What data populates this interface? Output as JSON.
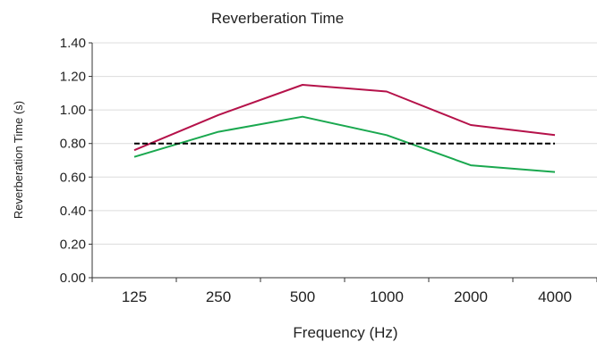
{
  "chart_data": {
    "type": "line",
    "title": "Reverberation Time",
    "xlabel": "Frequency (Hz)",
    "ylabel": "Reverberation Time (s)",
    "categories": [
      "125",
      "250",
      "500",
      "1000",
      "2000",
      "4000"
    ],
    "yticks": [
      "0.00",
      "0.20",
      "0.40",
      "0.60",
      "0.80",
      "1.00",
      "1.20",
      "1.40"
    ],
    "ylim": [
      0,
      1.4
    ],
    "grid": true,
    "legend": "none",
    "series": [
      {
        "values": [
          0.76,
          0.97,
          1.15,
          1.11,
          0.91,
          0.85
        ],
        "color": "#b5124a",
        "dash": "solid"
      },
      {
        "values": [
          0.72,
          0.87,
          0.96,
          0.85,
          0.67,
          0.63
        ],
        "color": "#1aa84f",
        "dash": "solid"
      },
      {
        "values": [
          0.8,
          0.8,
          0.8,
          0.8,
          0.8,
          0.8
        ],
        "color": "#000000",
        "dash": "dashed"
      }
    ]
  }
}
